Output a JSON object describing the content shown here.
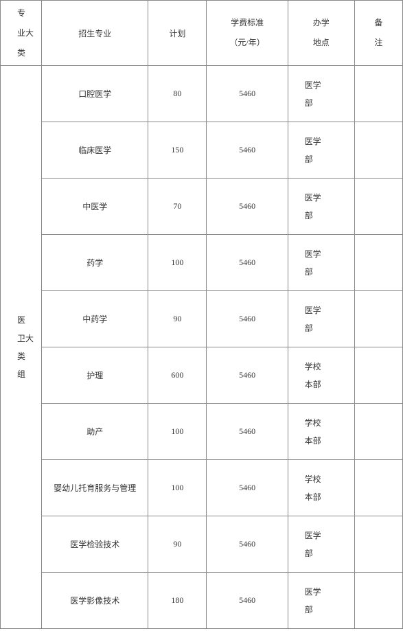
{
  "headers": {
    "category": "专\n业大类",
    "major": "招生专业",
    "plan": "计划",
    "tuition": "学费标准\n（元/年）",
    "location": "办学\n地点",
    "remark": "备\n注"
  },
  "category_label": "医\n卫大类\n组",
  "rows": [
    {
      "major": "口腔医学",
      "plan": "80",
      "tuition": "5460",
      "location": "医学\n部",
      "remark": ""
    },
    {
      "major": "临床医学",
      "plan": "150",
      "tuition": "5460",
      "location": "医学\n部",
      "remark": ""
    },
    {
      "major": "中医学",
      "plan": "70",
      "tuition": "5460",
      "location": "医学\n部",
      "remark": ""
    },
    {
      "major": "药学",
      "plan": "100",
      "tuition": "5460",
      "location": "医学\n部",
      "remark": ""
    },
    {
      "major": "中药学",
      "plan": "90",
      "tuition": "5460",
      "location": "医学\n部",
      "remark": ""
    },
    {
      "major": "护理",
      "plan": "600",
      "tuition": "5460",
      "location": "学校\n本部",
      "remark": ""
    },
    {
      "major": "助产",
      "plan": "100",
      "tuition": "5460",
      "location": "学校\n本部",
      "remark": ""
    },
    {
      "major": "婴幼儿托育服务与管理",
      "plan": "100",
      "tuition": "5460",
      "location": "学校\n本部",
      "remark": ""
    },
    {
      "major": "医学检验技术",
      "plan": "90",
      "tuition": "5460",
      "location": "医学\n部",
      "remark": ""
    },
    {
      "major": "医学影像技术",
      "plan": "180",
      "tuition": "5460",
      "location": "医学\n部",
      "remark": ""
    }
  ],
  "background_color": "#ffffff",
  "border_color": "#888888",
  "text_color": "#333333",
  "font_family": "SimSun",
  "font_size": 12
}
